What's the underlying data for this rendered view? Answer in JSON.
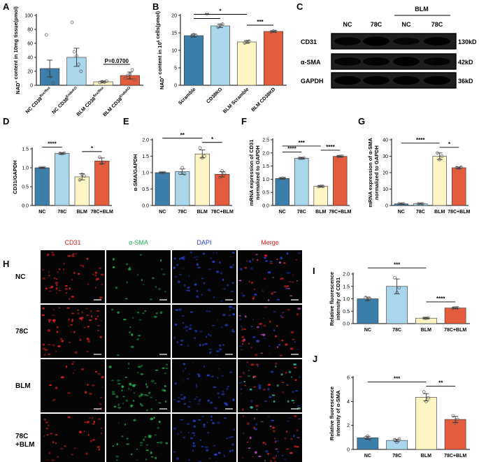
{
  "colors": {
    "blue": "#3d7fab",
    "lightblue": "#a9d6ea",
    "yellow": "#fdf6c4",
    "orange": "#e45c3e",
    "bar_edge": "#333333",
    "cd31": "#e02020",
    "asma": "#20b050",
    "dapi": "#2040d0",
    "merge": "#e02020"
  },
  "panels": {
    "A": "A",
    "B": "B",
    "C": "C",
    "D": "D",
    "E": "E",
    "F": "F",
    "G": "G",
    "H": "H",
    "I": "I",
    "J": "J"
  },
  "western_blot": {
    "bands": [
      "CD31",
      "α-SMA",
      "GAPDH"
    ],
    "kd": [
      "130kD",
      "42kD",
      "36kD"
    ],
    "lanes": [
      "NC",
      "78C",
      "NC",
      "78C"
    ],
    "group_label": "BLM",
    "intensity": [
      [
        0.7,
        0.9,
        0.55,
        0.75
      ],
      [
        0.7,
        0.72,
        0.88,
        0.65
      ],
      [
        0.8,
        0.8,
        0.8,
        0.8
      ]
    ]
  },
  "microscopy": {
    "columns": [
      "CD31",
      "α-SMA",
      "DAPI",
      "Merge"
    ],
    "rows": [
      "NC",
      "78C",
      "BLM",
      "78C\n+BLM"
    ],
    "density": [
      [
        0.8,
        0.12,
        0.8,
        0.8
      ],
      [
        1.0,
        0.08,
        0.8,
        0.9
      ],
      [
        0.25,
        1.0,
        0.8,
        0.9
      ],
      [
        0.55,
        0.5,
        0.8,
        0.8
      ]
    ]
  },
  "chart_data": [
    {
      "panel": "A",
      "type": "bar",
      "categories": [
        "NC CD38flox/flox",
        "NC CD38EndoKO",
        "BLM CD38flox/flox",
        "BLM CD38EndoKO"
      ],
      "values": [
        24,
        40,
        5,
        14
      ],
      "errors": [
        12,
        13,
        1,
        5
      ],
      "points": [
        [
          72,
          22,
          12,
          3
        ],
        [
          90,
          48,
          42,
          30,
          20
        ],
        [
          4,
          5,
          4.5,
          6
        ],
        [
          10,
          14,
          16,
          22,
          8
        ]
      ],
      "ylabel": "NAD+ content in 10mg tissue(pmol)",
      "ylim": [
        0,
        100
      ],
      "yticks": [
        0,
        20,
        40,
        60,
        80,
        100
      ],
      "annotations": [
        {
          "text": "P=0.0700",
          "from": 2,
          "to": 3
        }
      ]
    },
    {
      "panel": "B",
      "type": "bar",
      "categories": [
        "Scramble",
        "CD38KO",
        "BLM Scramble",
        "BLM CD38KD"
      ],
      "values": [
        14.2,
        17.0,
        12.4,
        15.4
      ],
      "errors": [
        0.4,
        0.5,
        0.4,
        0.2
      ],
      "points": [
        [
          14.0,
          14.5,
          14.3
        ],
        [
          16.6,
          17.2,
          17.5
        ],
        [
          12.1,
          12.5,
          12.6
        ],
        [
          15.3,
          15.5,
          15.4
        ]
      ],
      "ylabel": "NAD+ content in 10^6 cells(pmol)",
      "ylim": [
        0,
        20
      ],
      "yticks": [
        0,
        5,
        10,
        15,
        20
      ],
      "annotations": [
        {
          "text": "**",
          "from": 0,
          "to": 1
        },
        {
          "text": "*",
          "from": 0,
          "to": 2
        },
        {
          "text": "***",
          "from": 2,
          "to": 3
        }
      ]
    },
    {
      "panel": "D",
      "type": "bar",
      "categories": [
        "NC",
        "78C",
        "BLM",
        "78C+BLM"
      ],
      "values": [
        1.0,
        1.38,
        0.76,
        1.18
      ],
      "errors": [
        0.01,
        0.02,
        0.08,
        0.08
      ],
      "points": [
        [
          1.0,
          1.0,
          1.0
        ],
        [
          1.38,
          1.37,
          1.39
        ],
        [
          0.68,
          0.82,
          0.78
        ],
        [
          1.28,
          1.12,
          1.14
        ]
      ],
      "ylabel": "CD31/GAPDH",
      "ylim": [
        0,
        1.5
      ],
      "yticks": [
        0,
        0.5,
        1.0,
        1.5
      ],
      "annotations": [
        {
          "text": "****",
          "from": 0,
          "to": 1
        },
        {
          "text": "*",
          "from": 2,
          "to": 3
        }
      ]
    },
    {
      "panel": "E",
      "type": "bar",
      "categories": [
        "NC",
        "78C",
        "BLM",
        "78C+BLM"
      ],
      "values": [
        1.0,
        1.03,
        1.57,
        0.95
      ],
      "errors": [
        0.01,
        0.08,
        0.12,
        0.08
      ],
      "points": [
        [
          1.0,
          1.0,
          1.0
        ],
        [
          0.98,
          1.15,
          0.96
        ],
        [
          1.75,
          1.45,
          1.5
        ],
        [
          0.85,
          1.05,
          0.96
        ]
      ],
      "ylabel": "α-SMA/GAPDH",
      "ylim": [
        0,
        2.0
      ],
      "yticks": [
        0,
        0.5,
        1.0,
        1.5,
        2.0
      ],
      "annotations": [
        {
          "text": "**",
          "from": 0,
          "to": 2
        },
        {
          "text": "*",
          "from": 2,
          "to": 3
        }
      ]
    },
    {
      "panel": "F",
      "type": "bar",
      "categories": [
        "NC",
        "78C",
        "BLM",
        "78C+BLM"
      ],
      "values": [
        1.03,
        1.8,
        0.73,
        1.87
      ],
      "errors": [
        0.02,
        0.02,
        0.02,
        0.02
      ],
      "points": [
        [
          1.02,
          1.04,
          1.03
        ],
        [
          1.8,
          1.79,
          1.81
        ],
        [
          0.72,
          0.74,
          0.73
        ],
        [
          1.86,
          1.87,
          1.88
        ]
      ],
      "ylabel": "mRNA expression of CD31 normalized to GAPDH",
      "ylim": [
        0,
        2.5
      ],
      "yticks": [
        0,
        0.5,
        1.0,
        1.5,
        2.0,
        2.5
      ],
      "annotations": [
        {
          "text": "****",
          "from": 0,
          "to": 1
        },
        {
          "text": "***",
          "from": 0,
          "to": 2
        },
        {
          "text": "****",
          "from": 2,
          "to": 3
        }
      ]
    },
    {
      "panel": "G",
      "type": "bar",
      "categories": [
        "NC",
        "78C",
        "BLM",
        "78C+BLM"
      ],
      "values": [
        1.0,
        1.0,
        30,
        23
      ],
      "errors": [
        0.2,
        0.2,
        2,
        0.5
      ],
      "points": [
        [
          1.0,
          0.9,
          1.1
        ],
        [
          1.0,
          0.9,
          1.1
        ],
        [
          32,
          28,
          30
        ],
        [
          23,
          22.6,
          23.3
        ]
      ],
      "ylabel": "mRNA expression of α-SMA normalized to GAPDH",
      "ylim": [
        0,
        40
      ],
      "yticks": [
        0,
        10,
        20,
        30,
        40
      ],
      "annotations": [
        {
          "text": "****",
          "from": 0,
          "to": 2
        },
        {
          "text": "*",
          "from": 2,
          "to": 3
        }
      ]
    },
    {
      "panel": "I",
      "type": "bar",
      "categories": [
        "NC",
        "78C",
        "BLM",
        "78C+BLM"
      ],
      "values": [
        1.0,
        1.5,
        0.22,
        0.63
      ],
      "errors": [
        0.07,
        0.3,
        0.02,
        0.02
      ],
      "points": [
        [
          1.05,
          0.96,
          0.99
        ],
        [
          1.85,
          1.25,
          1.45
        ],
        [
          0.22,
          0.21,
          0.23
        ],
        [
          0.62,
          0.64,
          0.63
        ]
      ],
      "ylabel": "Relative fluorescence intensity of CD31",
      "ylim": [
        0,
        2.0
      ],
      "yticks": [
        0,
        0.5,
        1.0,
        1.5,
        2.0
      ],
      "annotations": [
        {
          "text": "***",
          "from": 0,
          "to": 2
        },
        {
          "text": "****",
          "from": 2,
          "to": 3
        }
      ]
    },
    {
      "panel": "J",
      "type": "bar",
      "categories": [
        "NC",
        "78C",
        "BLM",
        "78C+BLM"
      ],
      "values": [
        0.97,
        0.75,
        4.35,
        2.5
      ],
      "errors": [
        0.12,
        0.1,
        0.3,
        0.25
      ],
      "points": [
        [
          1.0,
          1.1,
          0.85
        ],
        [
          0.8,
          0.6,
          0.85
        ],
        [
          4.8,
          4.0,
          4.3
        ],
        [
          2.8,
          2.2,
          2.5
        ]
      ],
      "ylabel": "Relative fluorescence intensity of α-SMA",
      "ylim": [
        0,
        6
      ],
      "yticks": [
        0,
        2,
        4,
        6
      ],
      "annotations": [
        {
          "text": "***",
          "from": 0,
          "to": 2
        },
        {
          "text": "**",
          "from": 2,
          "to": 3
        }
      ]
    }
  ]
}
